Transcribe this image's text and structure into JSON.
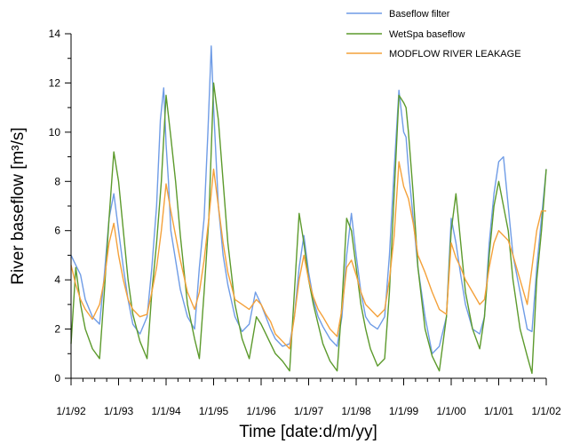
{
  "chart_data": {
    "type": "line",
    "title": "",
    "xlabel": "Time [date:d/m/yy]",
    "ylabel": "River baseflow [m³/s]",
    "xlim": [
      "1/1/92",
      "1/1/02"
    ],
    "ylim": [
      0,
      14
    ],
    "x_tick_labels": [
      "1/1/92",
      "1/1/93",
      "1/1/94",
      "1/1/95",
      "1/1/96",
      "1/1/97",
      "1/1/98",
      "1/1/99",
      "1/1/00",
      "1/1/01",
      "1/1/02"
    ],
    "y_tick_labels": [
      "0",
      "2",
      "4",
      "6",
      "8",
      "10",
      "12",
      "14"
    ],
    "legend_position": "top-right",
    "grid": false,
    "series": [
      {
        "name": "Baseflow filter",
        "color": "#6f9ce6",
        "x_years": [
          1992.0,
          1992.1,
          1992.2,
          1992.3,
          1992.45,
          1992.6,
          1992.7,
          1992.8,
          1992.9,
          1993.0,
          1993.1,
          1993.2,
          1993.3,
          1993.45,
          1993.6,
          1993.7,
          1993.8,
          1993.88,
          1993.95,
          1994.0,
          1994.05,
          1994.1,
          1994.2,
          1994.3,
          1994.45,
          1994.6,
          1994.7,
          1994.8,
          1994.88,
          1994.95,
          1995.0,
          1995.05,
          1995.1,
          1995.2,
          1995.3,
          1995.45,
          1995.6,
          1995.75,
          1995.88,
          1996.0,
          1996.1,
          1996.2,
          1996.3,
          1996.45,
          1996.6,
          1996.7,
          1996.8,
          1996.9,
          1997.0,
          1997.1,
          1997.2,
          1997.3,
          1997.45,
          1997.6,
          1997.7,
          1997.8,
          1997.9,
          1998.0,
          1998.1,
          1998.2,
          1998.3,
          1998.45,
          1998.6,
          1998.7,
          1998.8,
          1998.9,
          1999.0,
          1999.05,
          1999.1,
          1999.2,
          1999.3,
          1999.45,
          1999.6,
          1999.75,
          1999.9,
          2000.0,
          2000.1,
          2000.2,
          2000.3,
          2000.45,
          2000.6,
          2000.7,
          2000.8,
          2000.9,
          2001.0,
          2001.1,
          2001.2,
          2001.3,
          2001.45,
          2001.6,
          2001.7,
          2001.8,
          2001.9,
          2002.0
        ],
        "values": [
          5.0,
          4.6,
          4.2,
          3.2,
          2.5,
          2.2,
          4.2,
          6.5,
          7.5,
          6.0,
          4.5,
          3.2,
          2.2,
          1.8,
          2.5,
          4.5,
          7.0,
          10.5,
          11.8,
          9.5,
          8.0,
          6.0,
          4.8,
          3.6,
          2.5,
          2.0,
          4.5,
          6.5,
          10.0,
          13.5,
          11.0,
          9.0,
          7.0,
          5.0,
          3.8,
          2.5,
          1.9,
          2.2,
          3.5,
          3.0,
          2.5,
          2.0,
          1.6,
          1.3,
          1.4,
          2.5,
          4.5,
          5.8,
          4.3,
          3.2,
          2.5,
          2.1,
          1.6,
          1.3,
          2.5,
          5.0,
          6.7,
          5.0,
          3.5,
          2.5,
          2.2,
          2.0,
          2.5,
          5.0,
          8.5,
          11.7,
          10.0,
          9.8,
          8.5,
          6.5,
          4.5,
          2.5,
          1.0,
          1.3,
          2.5,
          6.5,
          5.5,
          4.2,
          3.0,
          2.0,
          1.8,
          2.5,
          5.5,
          7.5,
          8.8,
          9.0,
          7.0,
          5.0,
          3.5,
          2.0,
          1.9,
          4.5,
          6.5,
          8.5
        ]
      },
      {
        "name": "WetSpa baseflow",
        "color": "#5c9a2c",
        "x_years": [
          1992.0,
          1992.1,
          1992.2,
          1992.3,
          1992.45,
          1992.6,
          1992.7,
          1992.8,
          1992.9,
          1993.0,
          1993.1,
          1993.2,
          1993.3,
          1993.45,
          1993.6,
          1993.7,
          1993.8,
          1993.9,
          1994.0,
          1994.1,
          1994.2,
          1994.3,
          1994.45,
          1994.6,
          1994.7,
          1994.8,
          1994.9,
          1995.0,
          1995.1,
          1995.2,
          1995.3,
          1995.45,
          1995.6,
          1995.75,
          1995.9,
          1996.0,
          1996.1,
          1996.2,
          1996.3,
          1996.45,
          1996.6,
          1996.7,
          1996.8,
          1996.9,
          1997.0,
          1997.1,
          1997.2,
          1997.3,
          1997.45,
          1997.6,
          1997.7,
          1997.8,
          1997.9,
          1998.0,
          1998.1,
          1998.2,
          1998.3,
          1998.45,
          1998.6,
          1998.7,
          1998.8,
          1998.9,
          1999.0,
          1999.05,
          1999.1,
          1999.2,
          1999.3,
          1999.45,
          1999.6,
          1999.75,
          1999.9,
          2000.0,
          2000.1,
          2000.2,
          2000.3,
          2000.45,
          2000.6,
          2000.7,
          2000.8,
          2000.9,
          2001.0,
          2001.1,
          2001.2,
          2001.3,
          2001.45,
          2001.6,
          2001.7,
          2001.8,
          2001.9,
          2002.0
        ],
        "values": [
          1.4,
          4.5,
          3.0,
          2.0,
          1.2,
          0.8,
          3.5,
          6.5,
          9.2,
          8.0,
          6.0,
          4.0,
          2.6,
          1.5,
          0.8,
          3.5,
          5.5,
          8.0,
          11.5,
          9.8,
          8.0,
          5.8,
          3.0,
          1.6,
          0.8,
          3.5,
          6.5,
          12.0,
          10.5,
          8.0,
          5.5,
          3.0,
          1.6,
          0.8,
          2.5,
          2.2,
          1.8,
          1.4,
          1.0,
          0.7,
          0.3,
          3.5,
          6.7,
          5.5,
          4.0,
          3.0,
          2.2,
          1.4,
          0.7,
          0.3,
          3.0,
          6.5,
          6.0,
          4.5,
          3.0,
          2.0,
          1.2,
          0.5,
          0.8,
          3.5,
          7.5,
          11.5,
          11.2,
          11.0,
          10.0,
          7.5,
          4.5,
          2.0,
          0.9,
          0.3,
          2.5,
          6.0,
          7.5,
          5.5,
          3.5,
          2.0,
          1.2,
          2.5,
          5.0,
          7.0,
          8.0,
          7.0,
          6.0,
          4.0,
          2.0,
          0.9,
          0.2,
          4.0,
          6.0,
          8.5
        ]
      },
      {
        "name": "MODFLOW RIVER LEAKAGE",
        "color": "#f4a13a",
        "x_years": [
          1992.0,
          1992.1,
          1992.2,
          1992.3,
          1992.45,
          1992.6,
          1992.7,
          1992.8,
          1992.9,
          1993.0,
          1993.1,
          1993.2,
          1993.3,
          1993.45,
          1993.6,
          1993.7,
          1993.8,
          1993.9,
          1994.0,
          1994.1,
          1994.2,
          1994.3,
          1994.45,
          1994.6,
          1994.7,
          1994.8,
          1994.9,
          1995.0,
          1995.1,
          1995.2,
          1995.3,
          1995.45,
          1995.6,
          1995.75,
          1995.9,
          1996.0,
          1996.1,
          1996.2,
          1996.3,
          1996.45,
          1996.6,
          1996.7,
          1996.8,
          1996.9,
          1997.0,
          1997.1,
          1997.2,
          1997.3,
          1997.45,
          1997.6,
          1997.7,
          1997.8,
          1997.9,
          1998.0,
          1998.1,
          1998.2,
          1998.3,
          1998.45,
          1998.6,
          1998.7,
          1998.8,
          1998.9,
          1999.0,
          1999.1,
          1999.2,
          1999.3,
          1999.45,
          1999.6,
          1999.75,
          1999.9,
          2000.0,
          2000.1,
          2000.2,
          2000.3,
          2000.45,
          2000.6,
          2000.7,
          2000.8,
          2000.9,
          2001.0,
          2001.1,
          2001.2,
          2001.3,
          2001.45,
          2001.6,
          2001.7,
          2001.8,
          2001.9,
          2002.0
        ],
        "values": [
          4.6,
          3.8,
          3.2,
          2.8,
          2.4,
          3.0,
          4.0,
          5.5,
          6.3,
          5.0,
          4.0,
          3.2,
          2.8,
          2.5,
          2.6,
          3.5,
          4.5,
          6.0,
          7.9,
          6.8,
          5.8,
          4.8,
          3.5,
          2.8,
          3.5,
          4.8,
          6.5,
          8.5,
          7.0,
          5.5,
          4.3,
          3.2,
          3.0,
          2.8,
          3.2,
          3.0,
          2.6,
          2.3,
          1.8,
          1.5,
          1.2,
          2.5,
          4.0,
          5.0,
          4.0,
          3.3,
          2.8,
          2.5,
          2.0,
          1.7,
          2.8,
          4.5,
          4.8,
          4.2,
          3.5,
          3.0,
          2.8,
          2.5,
          2.8,
          4.0,
          5.8,
          8.8,
          7.8,
          7.3,
          6.3,
          5.0,
          4.3,
          3.5,
          2.8,
          2.6,
          5.5,
          4.9,
          4.5,
          4.0,
          3.5,
          3.0,
          3.2,
          4.5,
          5.5,
          6.0,
          5.8,
          5.6,
          5.0,
          4.0,
          3.0,
          4.5,
          6.0,
          6.8,
          6.8
        ]
      }
    ]
  }
}
